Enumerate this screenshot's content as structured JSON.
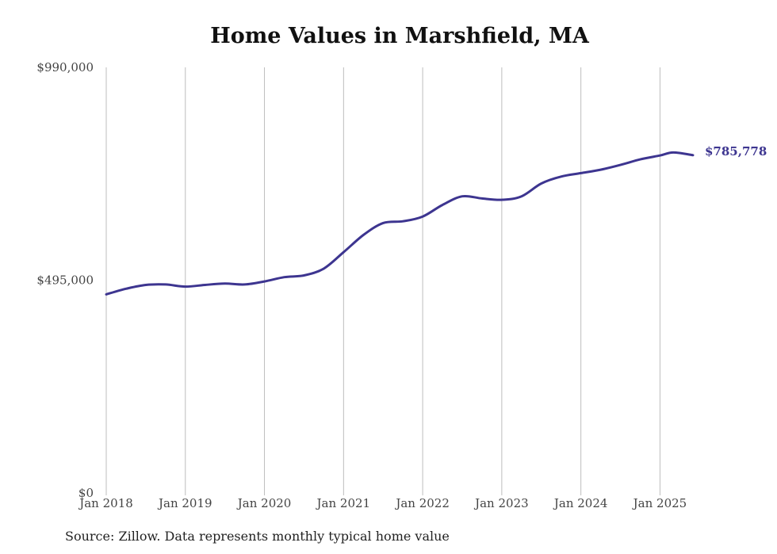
{
  "chart_data": {
    "type": "line",
    "title": "Home Values in Marshfield, MA",
    "xlabel": "",
    "ylabel": "",
    "x_tick_labels": [
      "Jan 2018",
      "Jan 2019",
      "Jan 2020",
      "Jan 2021",
      "Jan 2022",
      "Jan 2023",
      "Jan 2024",
      "Jan 2025"
    ],
    "y_tick_labels": [
      "$0",
      "$495,000",
      "$990,000"
    ],
    "y_ticks": [
      0,
      495000,
      990000
    ],
    "ylim": [
      0,
      990000
    ],
    "xlim": [
      "2018-01",
      "2025-06"
    ],
    "grid": "vertical",
    "line_color": "#3d3590",
    "series": [
      {
        "x": [
          "2018-01",
          "2018-04",
          "2018-07",
          "2018-10",
          "2019-01",
          "2019-04",
          "2019-07",
          "2019-10",
          "2020-01",
          "2020-04",
          "2020-07",
          "2020-10",
          "2021-01",
          "2021-04",
          "2021-07",
          "2021-10",
          "2022-01",
          "2022-04",
          "2022-07",
          "2022-10",
          "2023-01",
          "2023-04",
          "2023-07",
          "2023-10",
          "2024-01",
          "2024-04",
          "2024-07",
          "2024-10",
          "2025-01",
          "2025-03",
          "2025-06"
        ],
        "values": [
          462000,
          475000,
          484000,
          485000,
          480000,
          484000,
          487000,
          485000,
          492000,
          502000,
          506000,
          522000,
          560000,
          600000,
          628000,
          632000,
          643000,
          670000,
          690000,
          685000,
          682000,
          690000,
          720000,
          736000,
          744000,
          752000,
          763000,
          776000,
          785000,
          792000,
          785778
        ]
      }
    ],
    "end_label": "$785,778"
  },
  "source_note": "Source: Zillow. Data represents monthly typical home value"
}
